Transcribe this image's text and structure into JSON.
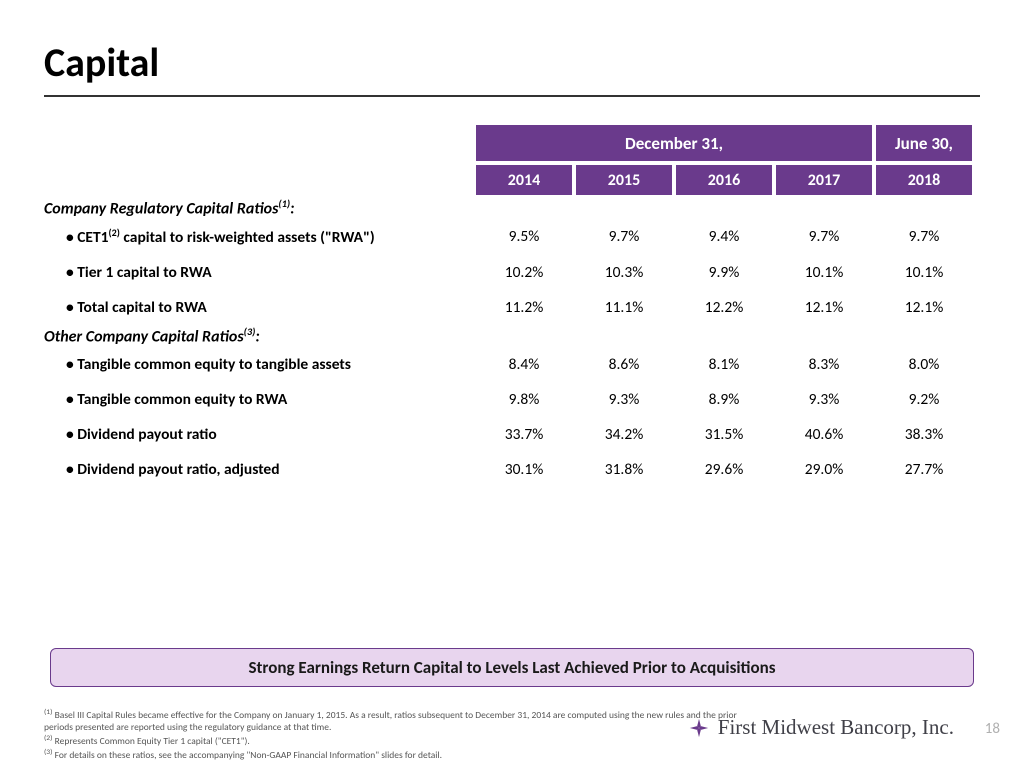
{
  "title": "Capital",
  "header": {
    "period1_label": "December 31,",
    "period2_label": "June 30,",
    "years": [
      "2014",
      "2015",
      "2016",
      "2017",
      "2018"
    ]
  },
  "colors": {
    "header_bg": "#6a3a8c",
    "header_fg": "#ffffff",
    "callout_bg": "#e8d5ee",
    "callout_border": "#6a3a8c",
    "text": "#000000",
    "footnote": "#555555",
    "pagenum": "#b0b0b0"
  },
  "section1": {
    "label_html": "Company Regulatory Capital Ratios",
    "sup": "(1)",
    "suffix": ":",
    "rows": [
      {
        "label_pre": "• CET1",
        "label_sup": "(2)",
        "label_post": " capital to risk-weighted assets (\"RWA\")",
        "vals": [
          "9.5%",
          "9.7%",
          "9.4%",
          "9.7%",
          "9.7%"
        ]
      },
      {
        "label_pre": "• Tier 1 capital to RWA",
        "label_sup": "",
        "label_post": "",
        "vals": [
          "10.2%",
          "10.3%",
          "9.9%",
          "10.1%",
          "10.1%"
        ]
      },
      {
        "label_pre": "• Total capital to RWA",
        "label_sup": "",
        "label_post": "",
        "vals": [
          "11.2%",
          "11.1%",
          "12.2%",
          "12.1%",
          "12.1%"
        ]
      }
    ]
  },
  "section2": {
    "label_html": "Other Company Capital Ratios",
    "sup": "(3)",
    "suffix": ":",
    "rows": [
      {
        "label_pre": "• Tangible common equity to tangible assets",
        "label_sup": "",
        "label_post": "",
        "vals": [
          "8.4%",
          "8.6%",
          "8.1%",
          "8.3%",
          "8.0%"
        ]
      },
      {
        "label_pre": "• Tangible common equity to RWA",
        "label_sup": "",
        "label_post": "",
        "vals": [
          "9.8%",
          "9.3%",
          "8.9%",
          "9.3%",
          "9.2%"
        ]
      },
      {
        "label_pre": "• Dividend payout ratio",
        "label_sup": "",
        "label_post": "",
        "vals": [
          "33.7%",
          "34.2%",
          "31.5%",
          "40.6%",
          "38.3%"
        ]
      },
      {
        "label_pre": "• Dividend payout ratio, adjusted",
        "label_sup": "",
        "label_post": "",
        "vals": [
          "30.1%",
          "31.8%",
          "29.6%",
          "29.0%",
          "27.7%"
        ]
      }
    ]
  },
  "callout": "Strong Earnings Return Capital to Levels Last Achieved Prior to Acquisitions",
  "footnotes": {
    "f1_sup": "(1)",
    "f1": " Basel III Capital Rules became effective for the Company on January 1, 2015.  As a result, ratios subsequent to December 31, 2014 are computed using the new rules and the prior periods presented are reported using the regulatory guidance at that time.",
    "f2_sup": "(2)",
    "f2": " Represents Common Equity Tier 1 capital (\"CET1\").",
    "f3_sup": "(3)",
    "f3": " For details on these ratios, see the accompanying \"Non-GAAP Financial Information\" slides for detail."
  },
  "brand": "First Midwest Bancorp, Inc.",
  "page_number": "18"
}
